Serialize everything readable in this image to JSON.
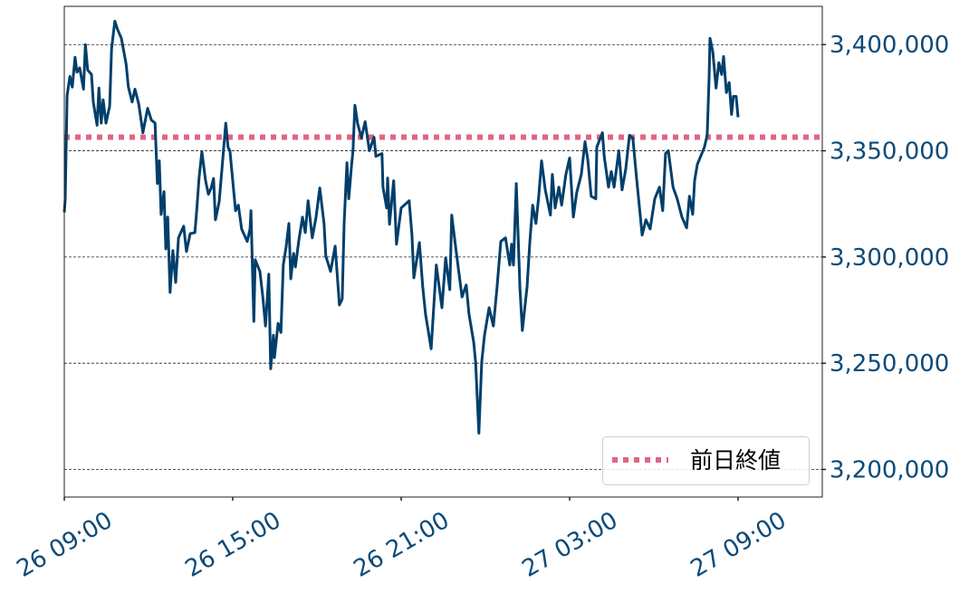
{
  "chart_data": {
    "type": "line",
    "title": "",
    "xlabel": "",
    "ylabel": "",
    "xlim": [
      "26 09:00",
      "27 12:00"
    ],
    "ylim": [
      3187000,
      3418000
    ],
    "x_ticks": [
      "26 09:00",
      "26 15:00",
      "26 21:00",
      "27 03:00",
      "27 09:00"
    ],
    "y_ticks": [
      3200000,
      3250000,
      3300000,
      3350000,
      3400000
    ],
    "y_tick_labels": [
      "3,200,000",
      "3,250,000",
      "3,300,000",
      "3,350,000",
      "3,400,000"
    ],
    "y_axis_side": "right",
    "grid": "horizontal dashed",
    "legend_placement": "lower-right",
    "colors": {
      "price": "#003f6b",
      "prev_close": "#e06683",
      "tick_text": "#0b4a78"
    },
    "reference_line": {
      "name": "前日終値",
      "value": 3356400,
      "style": "dotted"
    },
    "series": [
      {
        "points": [
          [
            "26 09:00",
            3321000
          ],
          [
            "26 09:02",
            3327000
          ],
          [
            "26 09:06",
            3376000
          ],
          [
            "26 09:12",
            3385000
          ],
          [
            "26 09:17",
            3380000
          ],
          [
            "26 09:23",
            3394000
          ],
          [
            "26 09:27",
            3387000
          ],
          [
            "26 09:33",
            3389000
          ],
          [
            "26 09:41",
            3379000
          ],
          [
            "26 09:45",
            3400000
          ],
          [
            "26 09:50",
            3388000
          ],
          [
            "26 09:58",
            3386000
          ],
          [
            "26 10:02",
            3373000
          ],
          [
            "26 10:10",
            3362000
          ],
          [
            "26 10:14",
            3379500
          ],
          [
            "26 10:19",
            3363000
          ],
          [
            "26 10:23",
            3374000
          ],
          [
            "26 10:29",
            3363000
          ],
          [
            "26 10:37",
            3371000
          ],
          [
            "26 10:41",
            3398000
          ],
          [
            "26 10:48",
            3411000
          ],
          [
            "26 10:54",
            3407000
          ],
          [
            "26 11:02",
            3403000
          ],
          [
            "26 11:12",
            3391000
          ],
          [
            "26 11:17",
            3380000
          ],
          [
            "26 11:25",
            3373000
          ],
          [
            "26 11:31",
            3379000
          ],
          [
            "26 11:39",
            3372000
          ],
          [
            "26 11:48",
            3358500
          ],
          [
            "26 11:58",
            3370000
          ],
          [
            "26 12:06",
            3364500
          ],
          [
            "26 12:14",
            3363000
          ],
          [
            "26 12:19",
            3334600
          ],
          [
            "26 12:23",
            3345300
          ],
          [
            "26 12:27",
            3320000
          ],
          [
            "26 12:33",
            3330800
          ],
          [
            "26 12:37",
            3303800
          ],
          [
            "26 12:41",
            3318800
          ],
          [
            "26 12:46",
            3283300
          ],
          [
            "26 12:52",
            3303000
          ],
          [
            "26 12:58",
            3288000
          ],
          [
            "26 13:04",
            3309000
          ],
          [
            "26 13:15",
            3314500
          ],
          [
            "26 13:21",
            3302600
          ],
          [
            "26 13:29",
            3311000
          ],
          [
            "26 13:39",
            3311500
          ],
          [
            "26 13:43",
            3321800
          ],
          [
            "26 13:48",
            3337200
          ],
          [
            "26 13:54",
            3349600
          ],
          [
            "26 14:02",
            3335900
          ],
          [
            "26 14:08",
            3329500
          ],
          [
            "26 14:14",
            3332500
          ],
          [
            "26 14:19",
            3337000
          ],
          [
            "26 14:23",
            3317500
          ],
          [
            "26 14:31",
            3326000
          ],
          [
            "26 14:37",
            3341500
          ],
          [
            "26 14:45",
            3363000
          ],
          [
            "26 14:50",
            3351700
          ],
          [
            "26 14:54",
            3350000
          ],
          [
            "26 15:06",
            3321800
          ],
          [
            "26 15:12",
            3324400
          ],
          [
            "26 15:19",
            3313200
          ],
          [
            "26 15:31",
            3307300
          ],
          [
            "26 15:37",
            3313200
          ],
          [
            "26 15:39",
            3321800
          ],
          [
            "26 15:45",
            3269700
          ],
          [
            "26 15:48",
            3298700
          ],
          [
            "26 15:58",
            3293200
          ],
          [
            "26 16:04",
            3281600
          ],
          [
            "26 16:10",
            3267500
          ],
          [
            "26 16:17",
            3291900
          ],
          [
            "26 16:21",
            3247400
          ],
          [
            "26 16:27",
            3263200
          ],
          [
            "26 16:29",
            3252600
          ],
          [
            "26 16:37",
            3268800
          ],
          [
            "26 16:43",
            3264500
          ],
          [
            "26 16:48",
            3296200
          ],
          [
            "26 16:54",
            3304700
          ],
          [
            "26 17:00",
            3315800
          ],
          [
            "26 17:04",
            3289700
          ],
          [
            "26 17:10",
            3301700
          ],
          [
            "26 17:14",
            3295300
          ],
          [
            "26 17:21",
            3307300
          ],
          [
            "26 17:29",
            3318800
          ],
          [
            "26 17:35",
            3311500
          ],
          [
            "26 17:41",
            3326500
          ],
          [
            "26 17:50",
            3309000
          ],
          [
            "26 17:58",
            3318800
          ],
          [
            "26 18:06",
            3332500
          ],
          [
            "26 18:15",
            3315800
          ],
          [
            "26 18:19",
            3300400
          ],
          [
            "26 18:29",
            3293200
          ],
          [
            "26 18:39",
            3305100
          ],
          [
            "26 18:48",
            3277400
          ],
          [
            "26 18:54",
            3280300
          ],
          [
            "26 18:58",
            3315800
          ],
          [
            "26 19:04",
            3344400
          ],
          [
            "26 19:08",
            3327400
          ],
          [
            "26 19:14",
            3343200
          ],
          [
            "26 19:17",
            3350000
          ],
          [
            "26 19:21",
            3371400
          ],
          [
            "26 19:27",
            3362800
          ],
          [
            "26 19:35",
            3356000
          ],
          [
            "26 19:43",
            3363700
          ],
          [
            "26 19:52",
            3350000
          ],
          [
            "26 20:02",
            3356400
          ],
          [
            "26 20:06",
            3347400
          ],
          [
            "26 20:19",
            3348700
          ],
          [
            "26 20:21",
            3332900
          ],
          [
            "26 20:29",
            3323100
          ],
          [
            "26 20:31",
            3337200
          ],
          [
            "26 20:35",
            3315400
          ],
          [
            "26 20:44",
            3335900
          ],
          [
            "26 20:50",
            3306000
          ],
          [
            "26 21:00",
            3323100
          ],
          [
            "26 21:17",
            3326500
          ],
          [
            "26 21:23",
            3310300
          ],
          [
            "26 21:27",
            3290200
          ],
          [
            "26 21:39",
            3306800
          ],
          [
            "26 21:46",
            3285900
          ],
          [
            "26 21:52",
            3273100
          ],
          [
            "26 22:04",
            3256800
          ],
          [
            "26 22:15",
            3296200
          ],
          [
            "26 22:27",
            3276100
          ],
          [
            "26 22:35",
            3299600
          ],
          [
            "26 22:44",
            3284600
          ],
          [
            "26 22:48",
            3319700
          ],
          [
            "26 22:58",
            3301700
          ],
          [
            "26 23:10",
            3281200
          ],
          [
            "26 23:19",
            3286800
          ],
          [
            "26 23:25",
            3273100
          ],
          [
            "26 23:35",
            3259800
          ],
          [
            "26 23:39",
            3250400
          ],
          [
            "26 23:46",
            3217100
          ],
          [
            "26 23:52",
            3250400
          ],
          [
            "26 23:58",
            3263200
          ],
          [
            "27 00:08",
            3276100
          ],
          [
            "27 00:17",
            3267500
          ],
          [
            "27 00:25",
            3285900
          ],
          [
            "27 00:33",
            3307300
          ],
          [
            "27 00:43",
            3309000
          ],
          [
            "27 00:52",
            3296200
          ],
          [
            "27 00:56",
            3306000
          ],
          [
            "27 01:00",
            3296200
          ],
          [
            "27 01:06",
            3334600
          ],
          [
            "27 01:14",
            3284600
          ],
          [
            "27 01:19",
            3265400
          ],
          [
            "27 01:29",
            3285900
          ],
          [
            "27 01:35",
            3307300
          ],
          [
            "27 01:41",
            3324400
          ],
          [
            "27 01:48",
            3315800
          ],
          [
            "27 01:54",
            3328600
          ],
          [
            "27 02:00",
            3345300
          ],
          [
            "27 02:08",
            3331600
          ],
          [
            "27 02:19",
            3319700
          ],
          [
            "27 02:23",
            3338900
          ],
          [
            "27 02:29",
            3323100
          ],
          [
            "27 02:37",
            3332900
          ],
          [
            "27 02:43",
            3324400
          ],
          [
            "27 02:52",
            3338900
          ],
          [
            "27 03:00",
            3346600
          ],
          [
            "27 03:08",
            3318800
          ],
          [
            "27 03:15",
            3330300
          ],
          [
            "27 03:25",
            3338900
          ],
          [
            "27 03:33",
            3354300
          ],
          [
            "27 03:39",
            3345700
          ],
          [
            "27 03:46",
            3328600
          ],
          [
            "27 03:56",
            3327400
          ],
          [
            "27 03:58",
            3351700
          ],
          [
            "27 04:10",
            3358500
          ],
          [
            "27 04:14",
            3347400
          ],
          [
            "27 04:23",
            3332900
          ],
          [
            "27 04:29",
            3340200
          ],
          [
            "27 04:35",
            3332900
          ],
          [
            "27 04:45",
            3350000
          ],
          [
            "27 04:52",
            3331600
          ],
          [
            "27 05:00",
            3341500
          ],
          [
            "27 05:08",
            3357300
          ],
          [
            "27 05:15",
            3356000
          ],
          [
            "27 05:23",
            3337200
          ],
          [
            "27 05:35",
            3310300
          ],
          [
            "27 05:43",
            3317500
          ],
          [
            "27 05:52",
            3313200
          ],
          [
            "27 06:02",
            3327400
          ],
          [
            "27 06:12",
            3332900
          ],
          [
            "27 06:19",
            3321800
          ],
          [
            "27 06:25",
            3348700
          ],
          [
            "27 06:31",
            3350000
          ],
          [
            "27 06:41",
            3332900
          ],
          [
            "27 06:50",
            3327400
          ],
          [
            "27 07:00",
            3318800
          ],
          [
            "27 07:10",
            3313700
          ],
          [
            "27 07:16",
            3328600
          ],
          [
            "27 07:23",
            3320100
          ],
          [
            "27 07:27",
            3335900
          ],
          [
            "27 07:33",
            3343600
          ],
          [
            "27 07:41",
            3347900
          ],
          [
            "27 07:48",
            3351700
          ],
          [
            "27 07:54",
            3357300
          ],
          [
            "27 07:58",
            3384200
          ],
          [
            "27 08:00",
            3403000
          ],
          [
            "27 08:06",
            3396600
          ],
          [
            "27 08:13",
            3379500
          ],
          [
            "27 08:19",
            3391500
          ],
          [
            "27 08:25",
            3385900
          ],
          [
            "27 08:29",
            3394400
          ],
          [
            "27 08:35",
            3377400
          ],
          [
            "27 08:41",
            3382100
          ],
          [
            "27 08:46",
            3367100
          ],
          [
            "27 08:50",
            3375600
          ],
          [
            "27 08:56",
            3375600
          ],
          [
            "27 09:00",
            3365800
          ]
        ]
      }
    ]
  }
}
